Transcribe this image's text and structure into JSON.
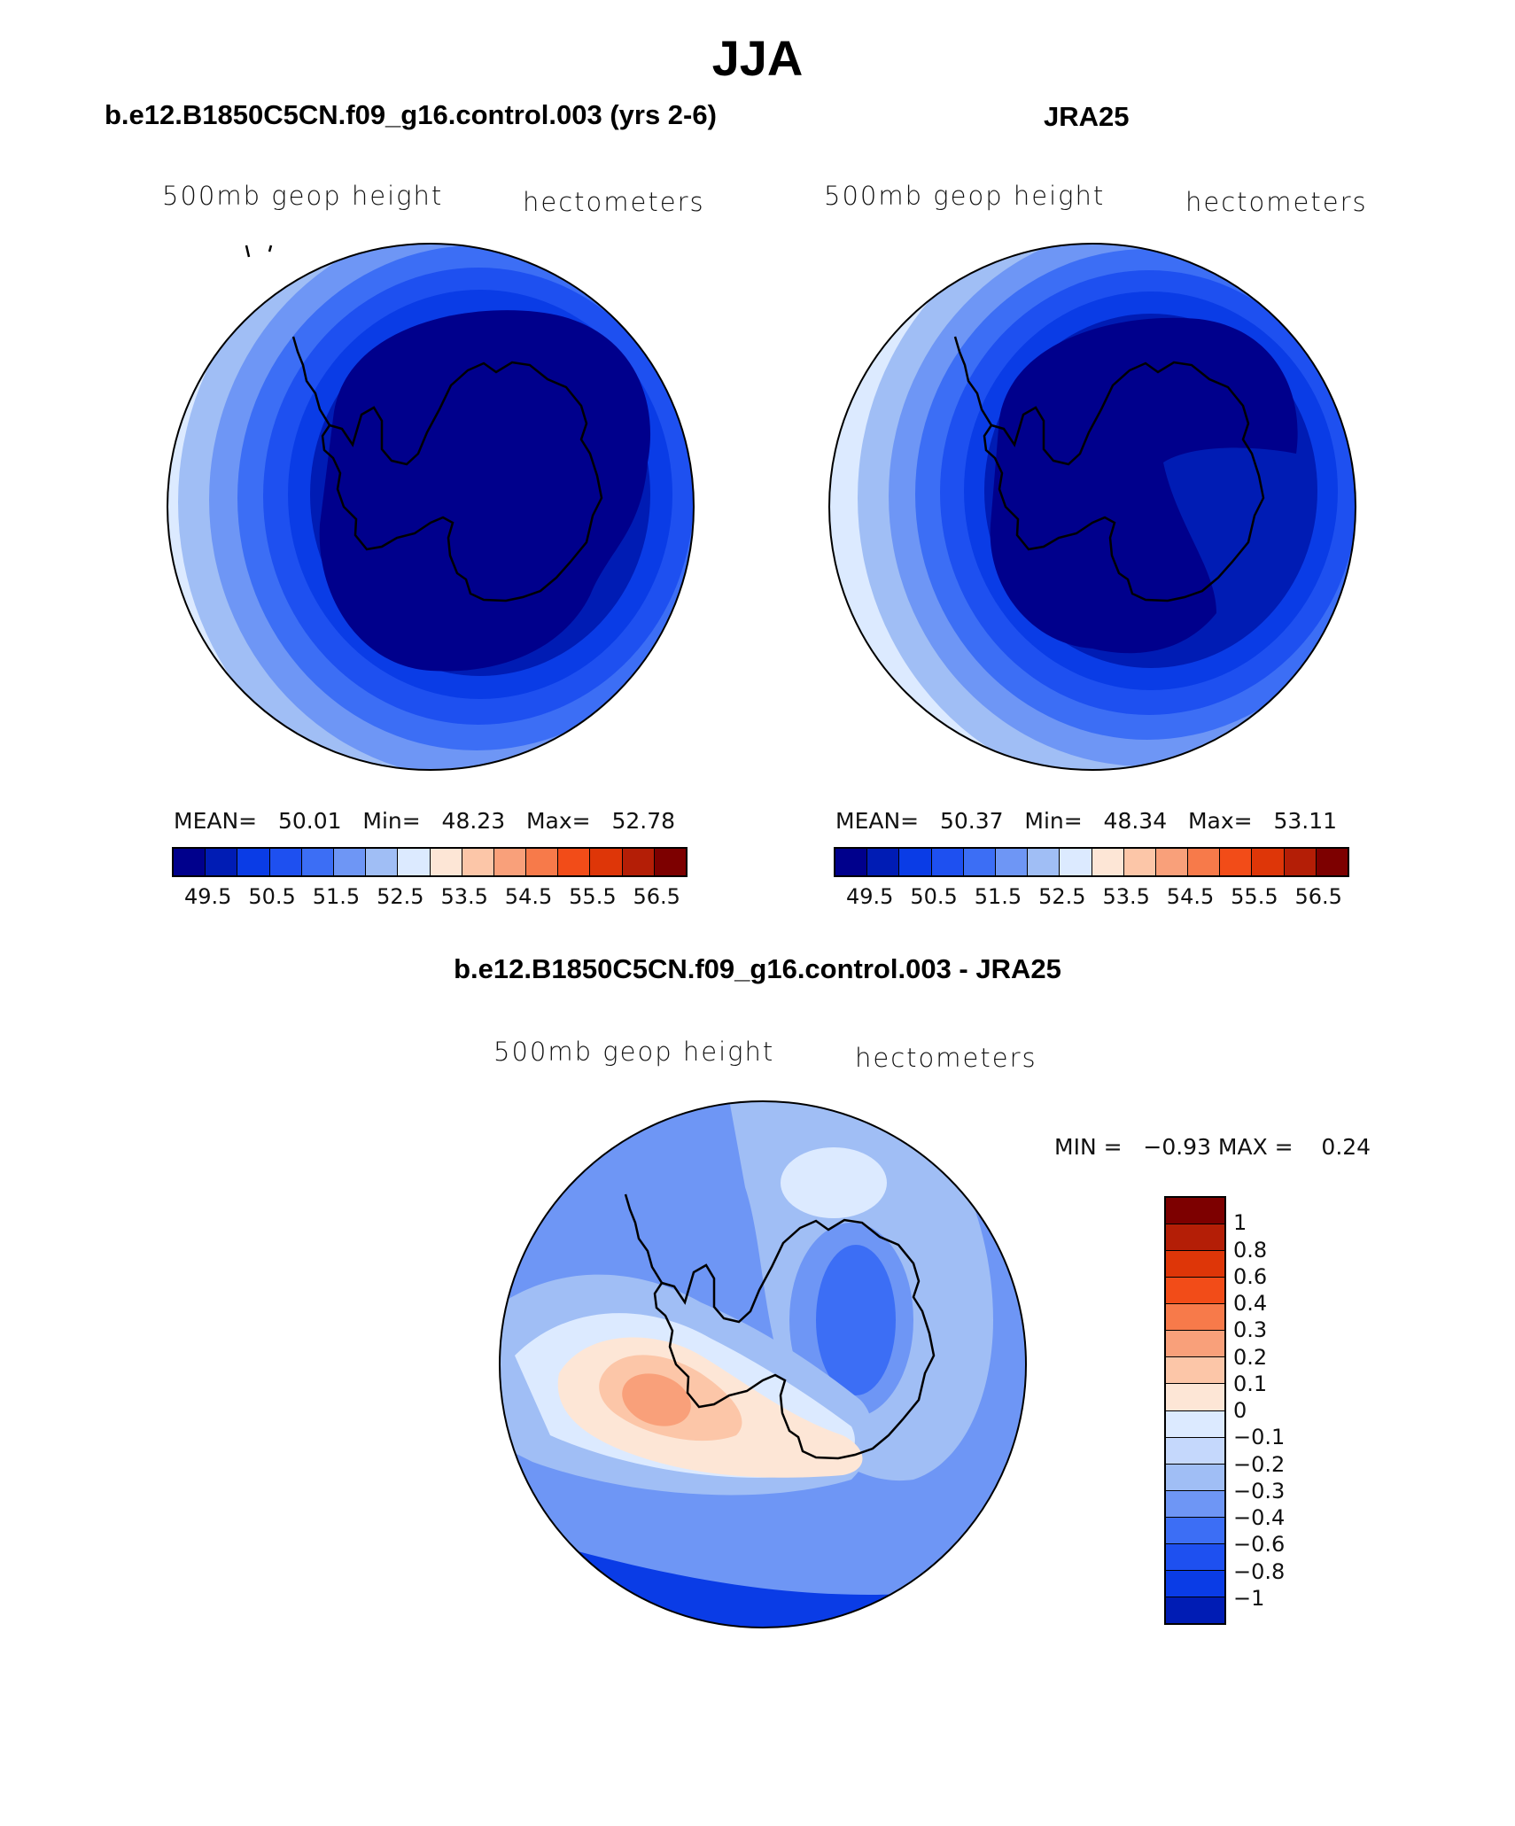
{
  "figure": {
    "title": "JJA",
    "left_title": "b.e12.B1850C5CN.f09_g16.control.003 (yrs 2-6)",
    "right_title": "JRA25",
    "diff_title": "b.e12.B1850C5CN.f09_g16.control.003 - JRA25"
  },
  "panels": {
    "left": {
      "variable": "500mb geop height",
      "units": "hectometers",
      "stats": {
        "mean_label": "MEAN=",
        "mean": "50.01",
        "min_label": "Min=",
        "min": "48.23",
        "max_label": "Max=",
        "max": "52.78"
      }
    },
    "right": {
      "variable": "500mb geop height",
      "units": "hectometers",
      "stats": {
        "mean_label": "MEAN=",
        "mean": "50.37",
        "min_label": "Min=",
        "min": "48.34",
        "max_label": "Max=",
        "max": "53.11"
      }
    },
    "diff": {
      "variable": "500mb geop height",
      "units": "hectometers",
      "minmax": "MIN =   −0.93 MAX =    0.24"
    }
  },
  "colorbars": {
    "abs": {
      "colors": [
        "#00008c",
        "#001cb4",
        "#0a3ce6",
        "#1e50f0",
        "#3c6ef5",
        "#6e96f5",
        "#a0bef5",
        "#dceaff",
        "#fde6d6",
        "#fcc6a8",
        "#f9a07a",
        "#f77a4a",
        "#f24c18",
        "#de3608",
        "#b41e06",
        "#7d0000"
      ],
      "ticks": [
        "49.5",
        "50.5",
        "51.5",
        "52.5",
        "53.5",
        "54.5",
        "55.5",
        "56.5"
      ]
    },
    "diff": {
      "colors_top_to_bottom": [
        "#7d0000",
        "#b41e06",
        "#de3608",
        "#f24c18",
        "#f77a4a",
        "#f9a07a",
        "#fcc6a8",
        "#fde6d6",
        "#dceaff",
        "#c5d8fc",
        "#a0bef5",
        "#6e96f5",
        "#3c6ef5",
        "#1e50f0",
        "#0a3ce6",
        "#001cb4"
      ],
      "ticks_top_to_bottom": [
        "1",
        "0.8",
        "0.6",
        "0.4",
        "0.3",
        "0.2",
        "0.1",
        "0",
        "−0.1",
        "−0.2",
        "−0.3",
        "−0.4",
        "−0.6",
        "−0.8",
        "−1"
      ]
    }
  }
}
